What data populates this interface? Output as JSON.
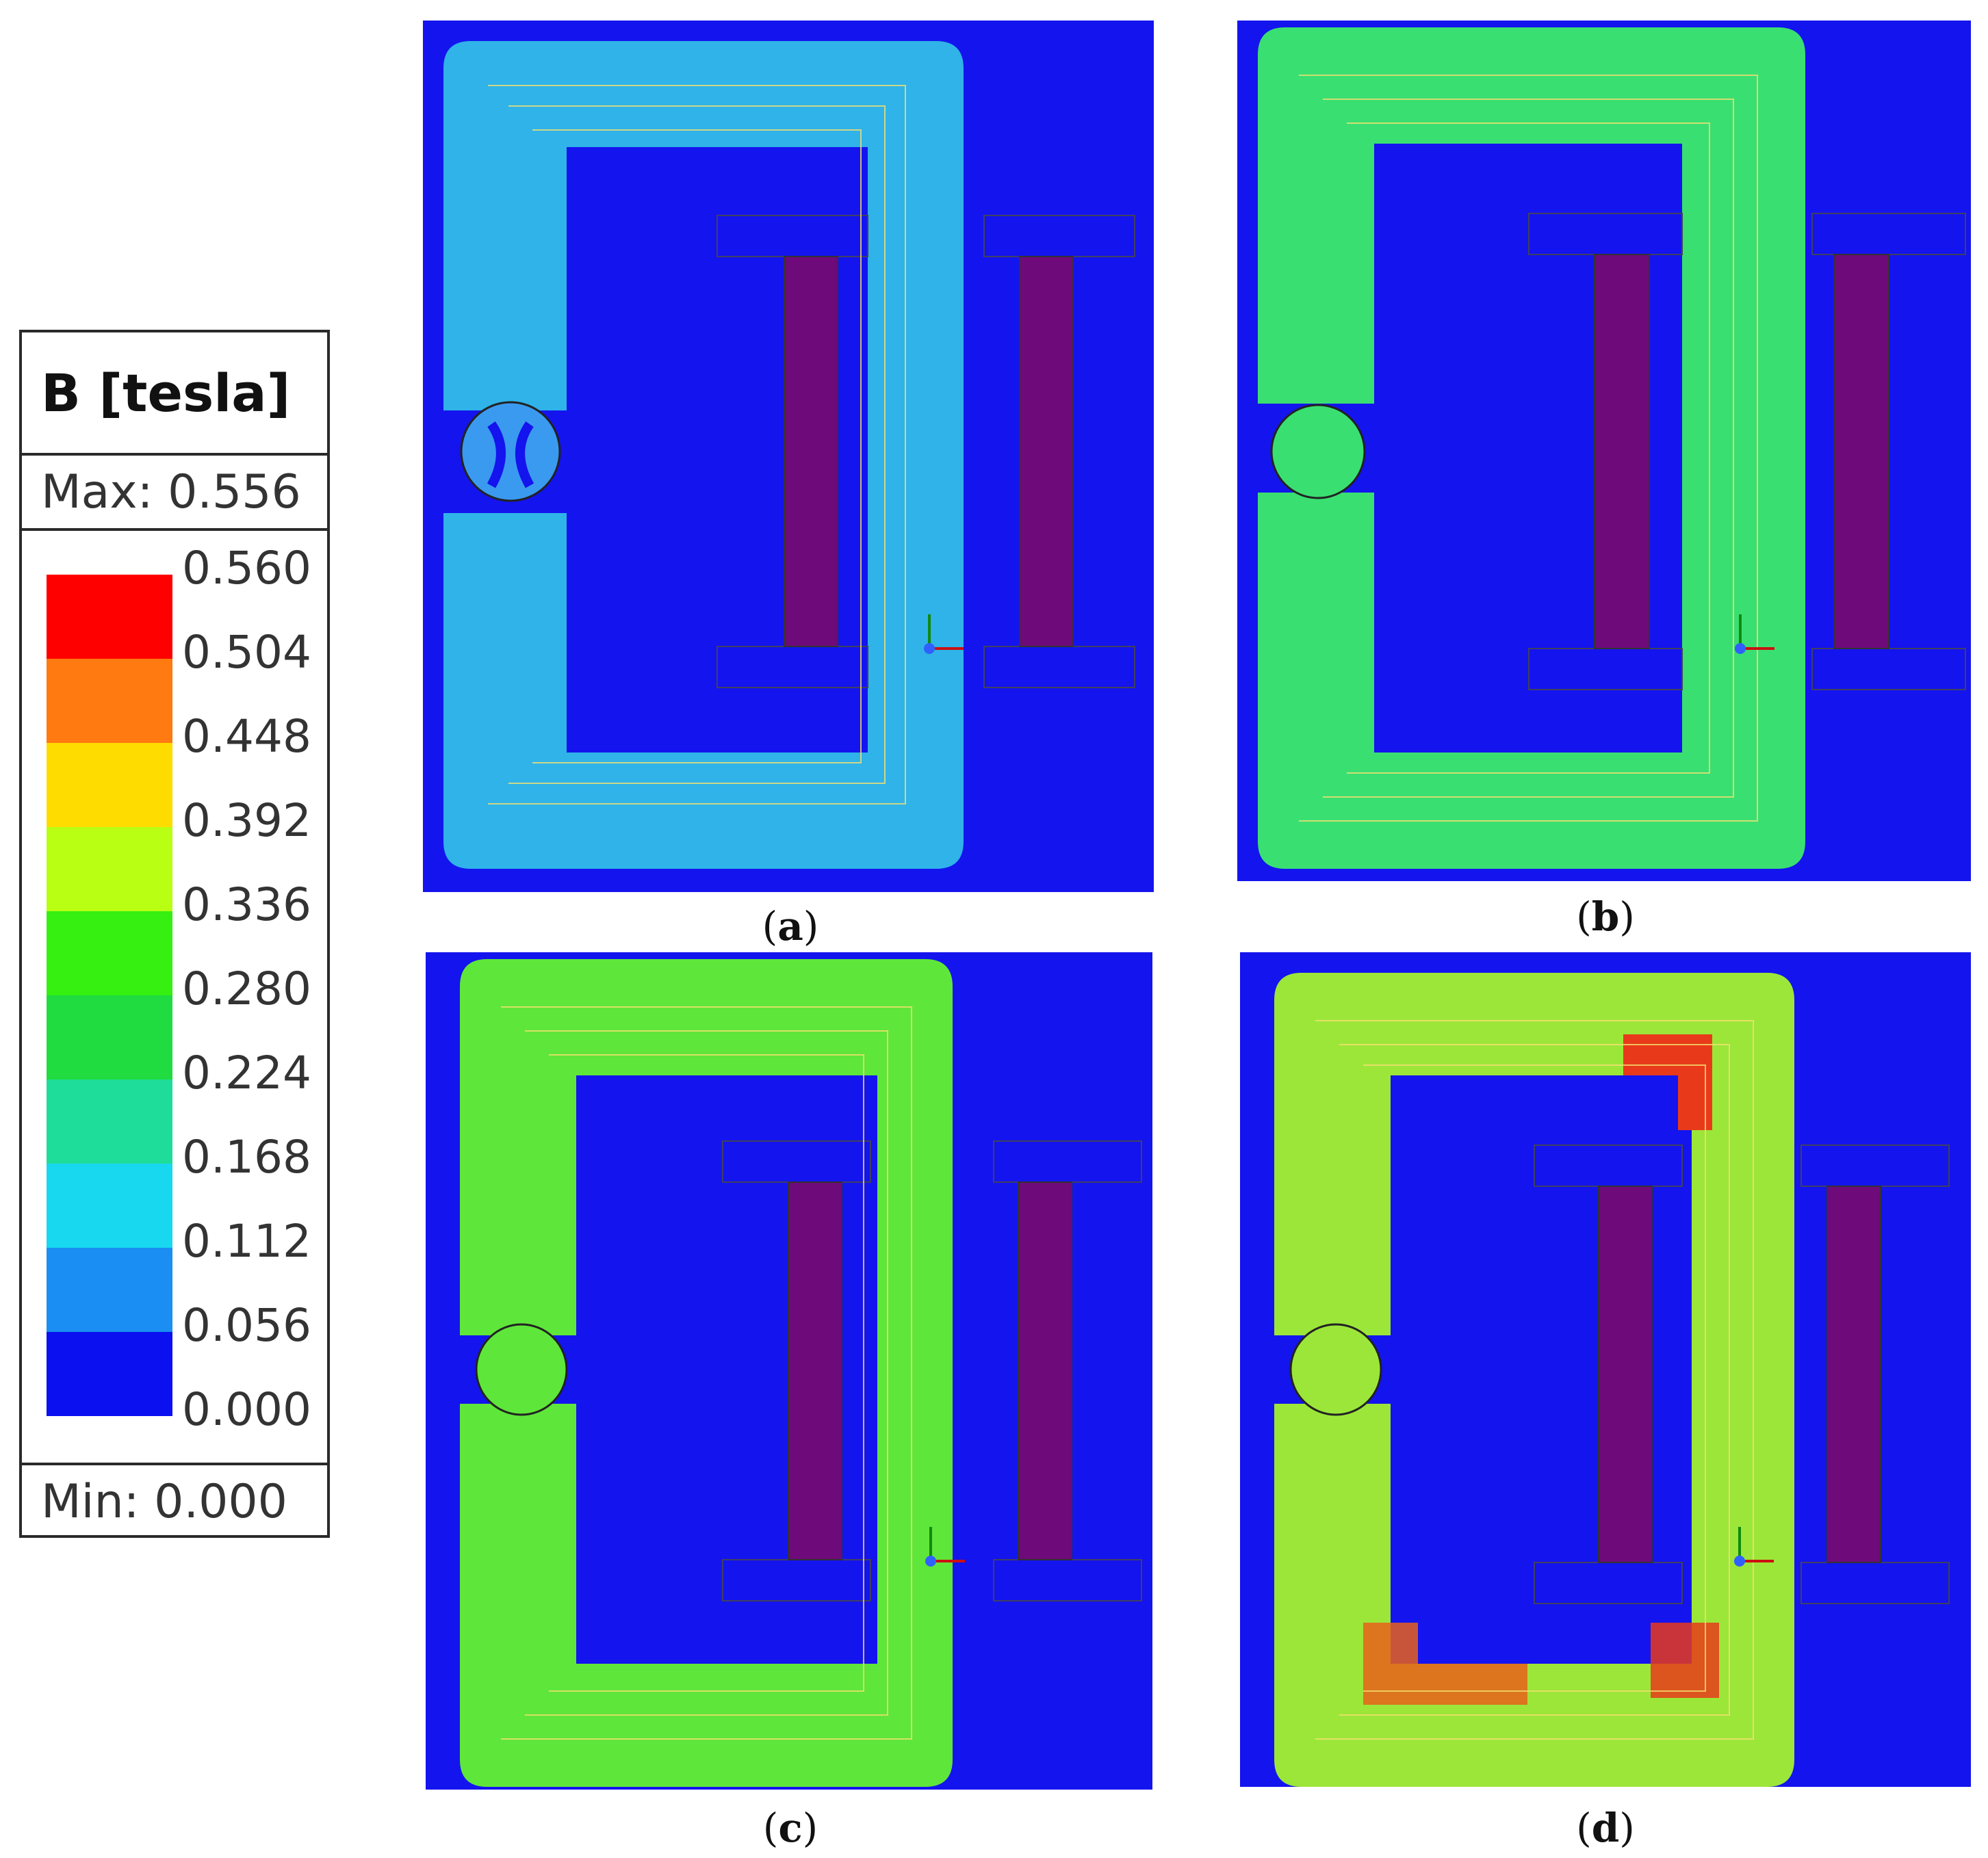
{
  "legend": {
    "title": "B [tesla]",
    "max_label": "Max: 0.556",
    "min_label": "Min: 0.000",
    "ticks": [
      "0.560",
      "0.504",
      "0.448",
      "0.392",
      "0.336",
      "0.280",
      "0.224",
      "0.168",
      "0.112",
      "0.056",
      "0.000"
    ],
    "colors": [
      "#ff0000",
      "#ff7a10",
      "#ffdc00",
      "#b8ff14",
      "#35f010",
      "#20dc40",
      "#1edd9a",
      "#18d8f0",
      "#1a8ef2",
      "#0a10f0"
    ]
  },
  "panels": [
    {
      "id": "a",
      "caption_open": "(",
      "caption_letter": "a",
      "caption_close": ")",
      "core_color": "#2fb3e8",
      "hot_color": "#2fb3e8"
    },
    {
      "id": "b",
      "caption_open": "(",
      "caption_letter": "b",
      "caption_close": ")",
      "core_color": "#3adf72",
      "hot_color": "#3adf72"
    },
    {
      "id": "c",
      "caption_open": "(",
      "caption_letter": "c",
      "caption_close": ")",
      "core_color": "#5fe63a",
      "hot_color": "#a8f230"
    },
    {
      "id": "d",
      "caption_open": "(",
      "caption_letter": "d",
      "caption_close": ")",
      "core_color": "#9ce63a",
      "hot_color": "#e83a1a"
    }
  ]
}
